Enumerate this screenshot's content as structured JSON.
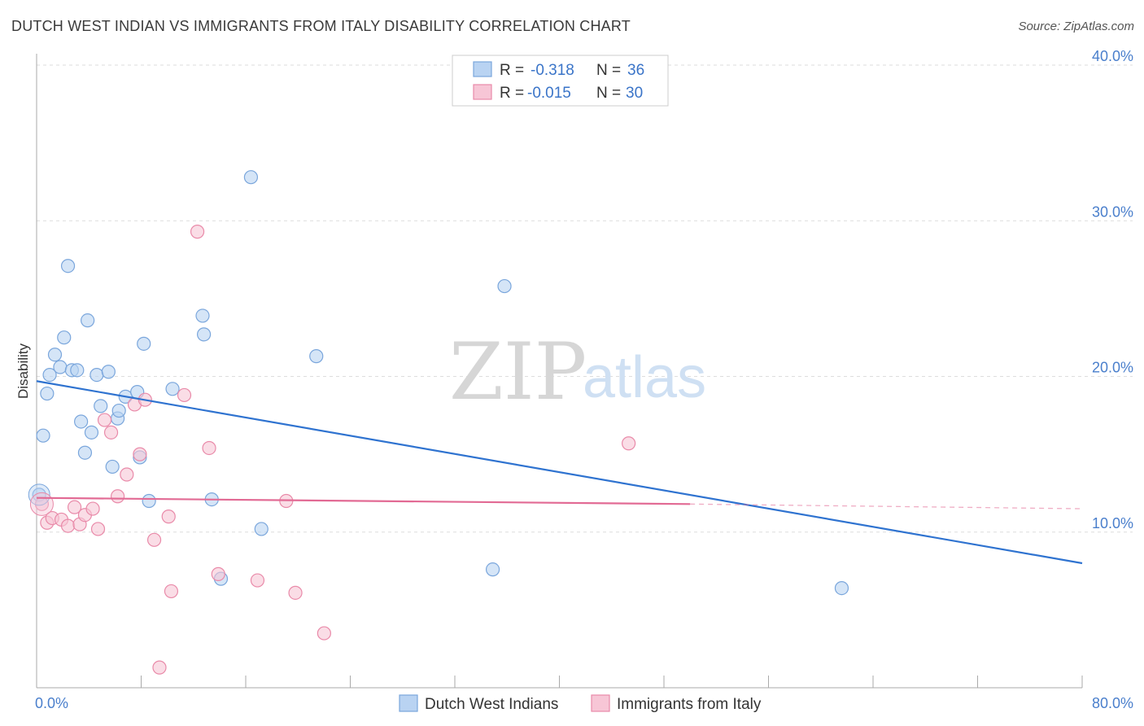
{
  "title": "DUTCH WEST INDIAN VS IMMIGRANTS FROM ITALY DISABILITY CORRELATION CHART",
  "source": "Source: ZipAtlas.com",
  "watermark": {
    "left": "ZIP",
    "right": "atlas"
  },
  "legend": {
    "rows": [
      {
        "r_label": "R =",
        "r_value": "-0.318",
        "n_label": "N =",
        "n_value": "36"
      },
      {
        "r_label": "R =",
        "r_value": "-0.015",
        "n_label": "N =",
        "n_value": "30"
      }
    ]
  },
  "bottom_legend": [
    "Dutch West Indians",
    "Immigrants from Italy"
  ],
  "colors": {
    "blue_fill": "#b9d3f2",
    "blue_stroke": "#7aa6dc",
    "blue_line": "#2f73d0",
    "pink_fill": "#f7c6d6",
    "pink_stroke": "#e98aa9",
    "pink_line": "#e26a94",
    "grid": "#dddddd",
    "tick_text": "#4a7fcc"
  },
  "chart_data": {
    "type": "scatter",
    "title": "DUTCH WEST INDIAN VS IMMIGRANTS FROM ITALY DISABILITY CORRELATION CHART",
    "xlabel": "",
    "ylabel": "Disability",
    "xlim": [
      0,
      80
    ],
    "ylim": [
      0,
      40
    ],
    "x_tick_labels": [
      "0.0%",
      "80.0%"
    ],
    "y_ticks": [
      10,
      20,
      30,
      40
    ],
    "y_tick_labels": [
      "10.0%",
      "20.0%",
      "30.0%",
      "40.0%"
    ],
    "grid": true,
    "legend_placement": "top-center",
    "series": [
      {
        "name": "Dutch West Indians",
        "r": -0.318,
        "n": 36,
        "points": [
          [
            0.2,
            12.4
          ],
          [
            0.5,
            16.2
          ],
          [
            0.8,
            18.9
          ],
          [
            1.0,
            20.1
          ],
          [
            1.4,
            21.4
          ],
          [
            1.8,
            20.6
          ],
          [
            2.1,
            22.5
          ],
          [
            2.4,
            27.1
          ],
          [
            2.7,
            20.4
          ],
          [
            3.1,
            20.4
          ],
          [
            3.4,
            17.1
          ],
          [
            3.7,
            15.1
          ],
          [
            3.9,
            23.6
          ],
          [
            4.2,
            16.4
          ],
          [
            4.6,
            20.1
          ],
          [
            4.9,
            18.1
          ],
          [
            5.5,
            20.3
          ],
          [
            5.8,
            14.2
          ],
          [
            6.2,
            17.3
          ],
          [
            6.3,
            17.8
          ],
          [
            6.8,
            18.7
          ],
          [
            7.7,
            19.0
          ],
          [
            7.9,
            14.8
          ],
          [
            8.2,
            22.1
          ],
          [
            8.6,
            12.0
          ],
          [
            10.4,
            19.2
          ],
          [
            12.7,
            23.9
          ],
          [
            12.8,
            22.7
          ],
          [
            13.4,
            12.1
          ],
          [
            14.1,
            7.0
          ],
          [
            16.4,
            32.8
          ],
          [
            17.2,
            10.2
          ],
          [
            21.4,
            21.3
          ],
          [
            34.9,
            7.6
          ],
          [
            35.8,
            25.8
          ],
          [
            61.6,
            6.4
          ]
        ],
        "trend": {
          "x": [
            0,
            80
          ],
          "y": [
            19.7,
            8.0
          ]
        }
      },
      {
        "name": "Immigrants from Italy",
        "r": -0.015,
        "n": 30,
        "points": [
          [
            0.4,
            11.8
          ],
          [
            0.8,
            10.6
          ],
          [
            1.2,
            10.9
          ],
          [
            1.9,
            10.8
          ],
          [
            2.4,
            10.4
          ],
          [
            2.9,
            11.6
          ],
          [
            3.3,
            10.5
          ],
          [
            3.7,
            11.1
          ],
          [
            4.3,
            11.5
          ],
          [
            4.7,
            10.2
          ],
          [
            5.2,
            17.2
          ],
          [
            5.7,
            16.4
          ],
          [
            6.2,
            12.3
          ],
          [
            6.9,
            13.7
          ],
          [
            7.5,
            18.2
          ],
          [
            7.9,
            15.0
          ],
          [
            8.3,
            18.5
          ],
          [
            9.0,
            9.5
          ],
          [
            9.4,
            1.3
          ],
          [
            10.1,
            11.0
          ],
          [
            10.3,
            6.2
          ],
          [
            11.3,
            18.8
          ],
          [
            12.3,
            29.3
          ],
          [
            13.2,
            15.4
          ],
          [
            13.9,
            7.3
          ],
          [
            16.9,
            6.9
          ],
          [
            19.1,
            12.0
          ],
          [
            19.8,
            6.1
          ],
          [
            22.0,
            3.5
          ],
          [
            45.3,
            15.7
          ]
        ],
        "trend": {
          "x": [
            0,
            50
          ],
          "y": [
            12.2,
            11.8
          ]
        },
        "trend_extension": {
          "x": [
            50,
            80
          ],
          "y": [
            11.8,
            11.5
          ]
        }
      }
    ]
  }
}
